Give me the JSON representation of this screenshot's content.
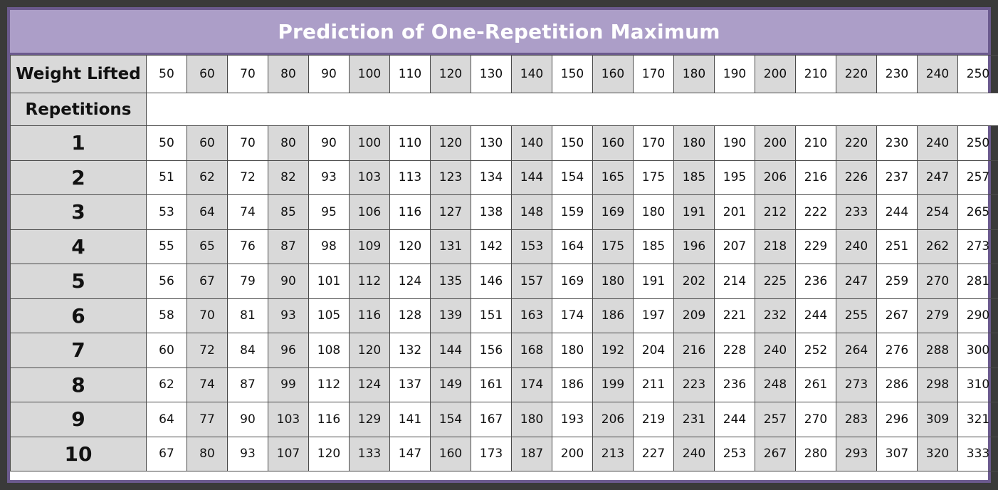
{
  "title": "Prediction of One-Repetition Maximum",
  "weight_label": "Weight Lifted",
  "reps_label": "Repetitions",
  "colors": {
    "title_bg": "#ac9ec8",
    "frame": "#6b5a8e",
    "shade": "#d9d9d9"
  },
  "weights": [
    "50",
    "60",
    "70",
    "80",
    "90",
    "100",
    "110",
    "120",
    "130",
    "140",
    "150",
    "160",
    "170",
    "180",
    "190",
    "200",
    "210",
    "220",
    "230",
    "240",
    "250"
  ],
  "rows": [
    {
      "reps": "1",
      "values": [
        "50",
        "60",
        "70",
        "80",
        "90",
        "100",
        "110",
        "120",
        "130",
        "140",
        "150",
        "160",
        "170",
        "180",
        "190",
        "200",
        "210",
        "220",
        "230",
        "240",
        "250"
      ]
    },
    {
      "reps": "2",
      "values": [
        "51",
        "62",
        "72",
        "82",
        "93",
        "103",
        "113",
        "123",
        "134",
        "144",
        "154",
        "165",
        "175",
        "185",
        "195",
        "206",
        "216",
        "226",
        "237",
        "247",
        "257"
      ]
    },
    {
      "reps": "3",
      "values": [
        "53",
        "64",
        "74",
        "85",
        "95",
        "106",
        "116",
        "127",
        "138",
        "148",
        "159",
        "169",
        "180",
        "191",
        "201",
        "212",
        "222",
        "233",
        "244",
        "254",
        "265"
      ]
    },
    {
      "reps": "4",
      "values": [
        "55",
        "65",
        "76",
        "87",
        "98",
        "109",
        "120",
        "131",
        "142",
        "153",
        "164",
        "175",
        "185",
        "196",
        "207",
        "218",
        "229",
        "240",
        "251",
        "262",
        "273"
      ]
    },
    {
      "reps": "5",
      "values": [
        "56",
        "67",
        "79",
        "90",
        "101",
        "112",
        "124",
        "135",
        "146",
        "157",
        "169",
        "180",
        "191",
        "202",
        "214",
        "225",
        "236",
        "247",
        "259",
        "270",
        "281"
      ]
    },
    {
      "reps": "6",
      "values": [
        "58",
        "70",
        "81",
        "93",
        "105",
        "116",
        "128",
        "139",
        "151",
        "163",
        "174",
        "186",
        "197",
        "209",
        "221",
        "232",
        "244",
        "255",
        "267",
        "279",
        "290"
      ]
    },
    {
      "reps": "7",
      "values": [
        "60",
        "72",
        "84",
        "96",
        "108",
        "120",
        "132",
        "144",
        "156",
        "168",
        "180",
        "192",
        "204",
        "216",
        "228",
        "240",
        "252",
        "264",
        "276",
        "288",
        "300"
      ]
    },
    {
      "reps": "8",
      "values": [
        "62",
        "74",
        "87",
        "99",
        "112",
        "124",
        "137",
        "149",
        "161",
        "174",
        "186",
        "199",
        "211",
        "223",
        "236",
        "248",
        "261",
        "273",
        "286",
        "298",
        "310"
      ]
    },
    {
      "reps": "9",
      "values": [
        "64",
        "77",
        "90",
        "103",
        "116",
        "129",
        "141",
        "154",
        "167",
        "180",
        "193",
        "206",
        "219",
        "231",
        "244",
        "257",
        "270",
        "283",
        "296",
        "309",
        "321"
      ]
    },
    {
      "reps": "10",
      "values": [
        "67",
        "80",
        "93",
        "107",
        "120",
        "133",
        "147",
        "160",
        "173",
        "187",
        "200",
        "213",
        "227",
        "240",
        "253",
        "267",
        "280",
        "293",
        "307",
        "320",
        "333"
      ]
    }
  ]
}
